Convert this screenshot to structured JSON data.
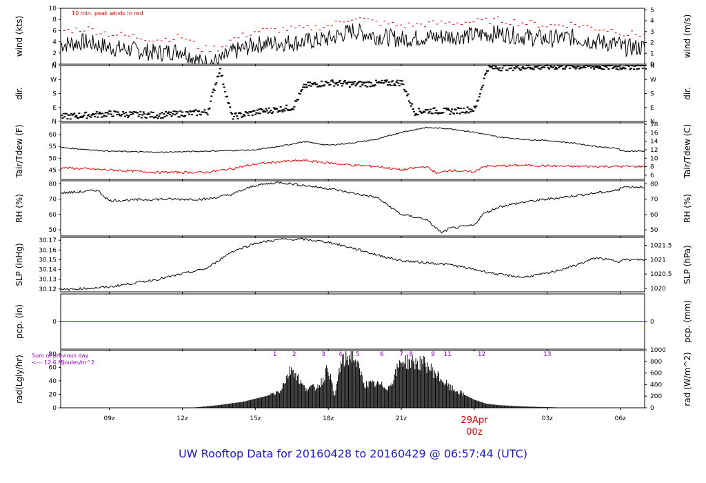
{
  "page": {
    "title": "UW Rooftop Data for 20160428  to  20160429 @ 06:57:44  (UTC)"
  },
  "colors": {
    "trace": "#000000",
    "peak": "#dd0000",
    "dew": "#ee0000",
    "pcp": "#0000dd",
    "accent": "#1a1acc",
    "note": "#9900cc",
    "date": "#dd0000"
  },
  "chart_data": {
    "type": "line",
    "x_axis": {
      "ticks": [
        "09z",
        "12z",
        "15z",
        "18z",
        "21z",
        "00z",
        "03z",
        "06z"
      ],
      "date_label": "29Apr",
      "date_tick": "00z"
    },
    "panels": [
      {
        "id": "wind",
        "left_label": "wind (kts)",
        "right_label": "wind (m/s)",
        "left_ticks": [
          "0",
          "2",
          "4",
          "6",
          "8",
          "10"
        ],
        "right_ticks": [
          "0",
          "1",
          "2",
          "3",
          "4",
          "5"
        ],
        "ylim": [
          0,
          10
        ],
        "annotation": "10 min. peak winds in red",
        "series": [
          {
            "name": "wind (kts)",
            "x": [
              "07z",
              "08z",
              "09z",
              "10z",
              "11z",
              "12z",
              "12:45z",
              "13:30z",
              "14z",
              "15z",
              "16z",
              "17z",
              "18z",
              "19z",
              "20z",
              "21z",
              "22z",
              "23z",
              "00z",
              "01z",
              "02z",
              "03z",
              "04z",
              "05z",
              "06z",
              "07z"
            ],
            "y": [
              3.5,
              4,
              3,
              2.5,
              2,
              2.5,
              0.3,
              0.5,
              2,
              3.5,
              3.8,
              4,
              4.5,
              6,
              5,
              4.5,
              4.8,
              5,
              5.2,
              5.5,
              5,
              4.5,
              4.8,
              4,
              3.5,
              3
            ]
          }
        ]
      },
      {
        "id": "dir",
        "left_label": "dir.",
        "right_label": "dir.",
        "left_ticks": [
          "N",
          "E",
          "S",
          "W",
          "N"
        ],
        "right_ticks": [
          "N",
          "E",
          "S",
          "W",
          "N"
        ],
        "ylim": [
          0,
          360
        ],
        "series": [
          {
            "name": "dir.",
            "x": [
              "07z",
              "09z",
              "11z",
              "13z",
              "13:30z",
              "14z",
              "15z",
              "16:30z",
              "17z",
              "18z",
              "19z",
              "20z",
              "21z",
              "21:30z",
              "22z",
              "23z",
              "00z",
              "00:30z",
              "02z",
              "04z",
              "06z",
              "07z"
            ],
            "y": [
              30,
              50,
              40,
              60,
              340,
              30,
              60,
              90,
              230,
              250,
              240,
              245,
              250,
              60,
              70,
              65,
              80,
              345,
              350,
              355,
              350,
              355
            ]
          }
        ]
      },
      {
        "id": "temp",
        "left_label": "Tair/Tdew (F)",
        "right_label": "Tair/Tdew (C)",
        "left_ticks": [
          "45",
          "50",
          "55",
          "60"
        ],
        "right_ticks": [
          "6",
          "8",
          "10",
          "12",
          "14",
          "16",
          "18"
        ],
        "ylim": [
          41,
          65
        ],
        "series": [
          {
            "name": "Tair",
            "x": [
              "07z",
              "09z",
              "11z",
              "13z",
              "15z",
              "16z",
              "17z",
              "18z",
              "19z",
              "20z",
              "21z",
              "22z",
              "23z",
              "00z",
              "01z",
              "02z",
              "03z",
              "04z",
              "05z",
              "06z",
              "07z"
            ],
            "y": [
              54.5,
              53,
              52.5,
              53,
              53.5,
              55,
              57,
              55.5,
              56.5,
              58,
              61,
              63,
              62.5,
              61,
              59,
              58,
              57.5,
              56.5,
              55,
              54,
              53
            ]
          },
          {
            "name": "Tdew",
            "x": [
              "07z",
              "09z",
              "11z",
              "13z",
              "14z",
              "15z",
              "16z",
              "17z",
              "18z",
              "19z",
              "20z",
              "21z",
              "22z",
              "22:30z",
              "23z",
              "00z",
              "00:20z",
              "02z",
              "04z",
              "06z",
              "07z"
            ],
            "y": [
              46,
              45,
              44,
              44,
              45.5,
              47.5,
              48.5,
              49,
              48,
              47,
              46.5,
              45,
              46.5,
              43.5,
              45,
              44,
              46.5,
              47,
              46.5,
              46.5,
              46.5
            ]
          }
        ]
      },
      {
        "id": "rh",
        "left_label": "RH (%)",
        "right_label": "RH (%)",
        "left_ticks": [
          "50",
          "60",
          "70",
          "80"
        ],
        "right_ticks": [
          "50",
          "60",
          "70",
          "80"
        ],
        "ylim": [
          46,
          82
        ],
        "series": [
          {
            "name": "RH",
            "x": [
              "07z",
              "08z",
              "08:30z",
              "09z",
              "11z",
              "13z",
              "14z",
              "15z",
              "16z",
              "17z",
              "18z",
              "19z",
              "20z",
              "21z",
              "22z",
              "22:40z",
              "23z",
              "00z",
              "00:20z",
              "01z",
              "02z",
              "03z",
              "04z",
              "05z",
              "06z",
              "07z"
            ],
            "y": [
              74,
              75,
              76,
              69,
              70,
              70,
              73,
              79,
              81,
              79,
              77,
              74,
              71,
              60,
              57,
              48,
              51,
              53,
              60,
              65,
              68,
              70,
              72,
              74,
              76,
              78
            ]
          }
        ]
      },
      {
        "id": "slp",
        "left_label": "SLP (inHg)",
        "right_label": "SLP (hPa)",
        "left_ticks": [
          "30.12",
          "30.13",
          "30.14",
          "30.15",
          "30.16",
          "30.17"
        ],
        "right_ticks": [
          "1020",
          "1020.5",
          "1021",
          "1021.5"
        ],
        "ylim": [
          30.117,
          30.173
        ],
        "series": [
          {
            "name": "SLP",
            "x": [
              "07z",
              "09z",
              "11z",
              "13z",
              "14z",
              "15z",
              "16z",
              "17z",
              "18z",
              "19z",
              "20z",
              "21z",
              "22z",
              "23z",
              "00z",
              "01z",
              "02z",
              "03z",
              "04z",
              "05z",
              "06z",
              "07z"
            ],
            "y": [
              30.119,
              30.122,
              30.13,
              30.141,
              30.158,
              30.167,
              30.171,
              30.171,
              30.168,
              30.162,
              30.155,
              30.149,
              30.147,
              30.145,
              30.14,
              30.135,
              30.132,
              30.136,
              30.143,
              30.152,
              30.148,
              30.15
            ]
          }
        ]
      },
      {
        "id": "pcp",
        "left_label": "pcp. (in)",
        "right_label": "pcp. (mm)",
        "left_ticks": [
          "0"
        ],
        "right_ticks": [
          "0"
        ],
        "ylim": [
          -1,
          1
        ],
        "series": [
          {
            "name": "pcp",
            "x": [
              "07z",
              "07z+24"
            ],
            "y": [
              0,
              0
            ]
          }
        ]
      },
      {
        "id": "rad",
        "left_label": "rad(Lgly/hr)",
        "right_label": "rad (W/m^2)",
        "left_ticks": [
          "0",
          "20",
          "40",
          "60",
          "80"
        ],
        "right_ticks": [
          "0",
          "200",
          "400",
          "600",
          "800",
          "1000"
        ],
        "ylim": [
          0,
          85
        ],
        "annotation": [
          "Sum of previous day",
          "<--- 12.6 MJoules/m^2"
        ],
        "hour_marks": [
          "1",
          "2",
          "3",
          "4",
          "5",
          "6",
          "7",
          "8",
          "9",
          "11",
          "12",
          "13"
        ],
        "series": [
          {
            "name": "rad",
            "x": [
              "07z",
              "12:30z",
              "13:30z",
              "14:30z",
              "15:30z",
              "16z",
              "16:30z",
              "17z",
              "17:30z",
              "17:45z",
              "18z",
              "18:15z",
              "18:30z",
              "19z",
              "19:30z",
              "20z",
              "20:30z",
              "21z",
              "22z",
              "23z",
              "00z",
              "00:30z",
              "01z",
              "02z",
              "03z",
              "04z"
            ],
            "y": [
              0,
              0.5,
              4,
              9,
              18,
              25,
              60,
              30,
              30,
              40,
              62,
              15,
              65,
              80,
              35,
              35,
              30,
              70,
              65,
              30,
              12,
              6,
              4,
              2,
              1,
              0
            ]
          }
        ]
      }
    ]
  }
}
